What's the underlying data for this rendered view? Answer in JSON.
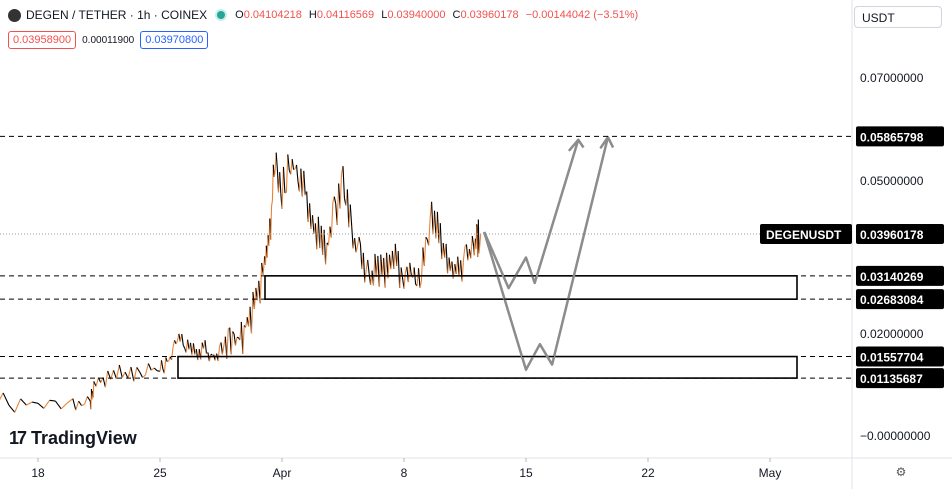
{
  "header": {
    "symbol_title": "DEGEN / TETHER · 1h · COINEX",
    "ohlc": {
      "o_label": "O",
      "o": "0.04104218",
      "h_label": "H",
      "h": "0.04116569",
      "l_label": "L",
      "l": "0.03940000",
      "c_label": "C",
      "c": "0.03960178",
      "change": "−0.00144042 (−3.51%)"
    }
  },
  "quote": {
    "bid": "0.03958900",
    "spread": "0.00011900",
    "ask": "0.03970800"
  },
  "currency_selector": {
    "value": "USDT"
  },
  "logo": {
    "mark": "17",
    "text": "TradingView"
  },
  "icons": {
    "symbol": "coin-logo-icon",
    "live": "live-status-icon",
    "settings": "settings-icon"
  },
  "colors": {
    "up": "#26a69a",
    "down": "#ef5350",
    "candle": "#000000",
    "wick_up": "#e8843a",
    "projection": "#8c8c8c",
    "zone": "#000000"
  },
  "chart_data": {
    "type": "line",
    "x_ticks": [
      "18",
      "25",
      "Apr",
      "8",
      "15",
      "22",
      "May"
    ],
    "y_ticks": [
      "0.07000000",
      "0.05000000",
      "0.02000000",
      "−0.00000000"
    ],
    "ylim": [
      -0.004,
      0.085
    ],
    "xlim": [
      14.5,
      46.5
    ],
    "grid": false,
    "series": [
      {
        "values": [
          [
            14.5,
            0.0081
          ],
          [
            16,
            0.0076
          ],
          [
            18,
            0.0073
          ],
          [
            20,
            0.0072
          ],
          [
            21,
            0.0071
          ],
          [
            21.2,
            0.0108
          ],
          [
            22,
            0.0125
          ],
          [
            23,
            0.0132
          ],
          [
            24,
            0.0138
          ],
          [
            25,
            0.0146
          ],
          [
            25.5,
            0.0158
          ],
          [
            26,
            0.02
          ],
          [
            26.5,
            0.019
          ],
          [
            27,
            0.017
          ],
          [
            27.5,
            0.0185
          ],
          [
            28,
            0.016
          ],
          [
            28.5,
            0.0175
          ],
          [
            29,
            0.0215
          ],
          [
            29.5,
            0.019
          ],
          [
            30,
            0.024
          ],
          [
            30.5,
            0.028
          ],
          [
            31,
            0.035
          ],
          [
            31.3,
            0.042
          ],
          [
            31.6,
            0.056
          ],
          [
            32,
            0.05
          ],
          [
            32.5,
            0.056
          ],
          [
            33,
            0.052
          ],
          [
            33.5,
            0.048
          ],
          [
            34,
            0.042
          ],
          [
            34.5,
            0.038
          ],
          [
            35,
            0.045
          ],
          [
            35.5,
            0.052
          ],
          [
            36,
            0.042
          ],
          [
            36.5,
            0.038
          ],
          [
            37,
            0.033
          ],
          [
            37.5,
            0.035
          ],
          [
            38,
            0.034
          ],
          [
            38.5,
            0.036
          ],
          [
            39,
            0.033
          ],
          [
            39.5,
            0.034
          ],
          [
            40,
            0.034
          ],
          [
            40.5,
            0.045
          ],
          [
            41,
            0.042
          ],
          [
            41.5,
            0.037
          ],
          [
            42,
            0.035
          ],
          [
            42.5,
            0.036
          ],
          [
            43,
            0.038
          ],
          [
            43.2,
            0.041
          ],
          [
            43.4,
            0.0396
          ]
        ]
      }
    ],
    "horizontal_levels": [
      "0.05865798",
      "0.03960178",
      "0.03140269",
      "0.02683084",
      "0.01557704",
      "0.01135687"
    ],
    "level_values": [
      0.05865798,
      0.03960178,
      0.03140269,
      0.02683084,
      0.01557704,
      0.01135687
    ],
    "last_label": "DEGENUSDT",
    "zones": [
      [
        0.02683084,
        0.03140269
      ],
      [
        0.01135687,
        0.01557704
      ]
    ],
    "projection_paths": [
      [
        [
          43.6,
          0.04
        ],
        [
          45.0,
          0.029
        ],
        [
          46.0,
          0.035
        ],
        [
          46.5,
          0.03
        ],
        [
          49.0,
          0.058
        ],
        [
          48.5,
          0.056
        ],
        [
          49.0,
          0.058
        ],
        [
          49.3,
          0.0565
        ]
      ],
      [
        [
          43.6,
          0.04
        ],
        [
          46.0,
          0.013
        ],
        [
          46.8,
          0.018
        ],
        [
          47.5,
          0.014
        ],
        [
          50.7,
          0.0585
        ],
        [
          50.3,
          0.0565
        ],
        [
          50.7,
          0.0585
        ],
        [
          51.0,
          0.0565
        ]
      ]
    ]
  }
}
